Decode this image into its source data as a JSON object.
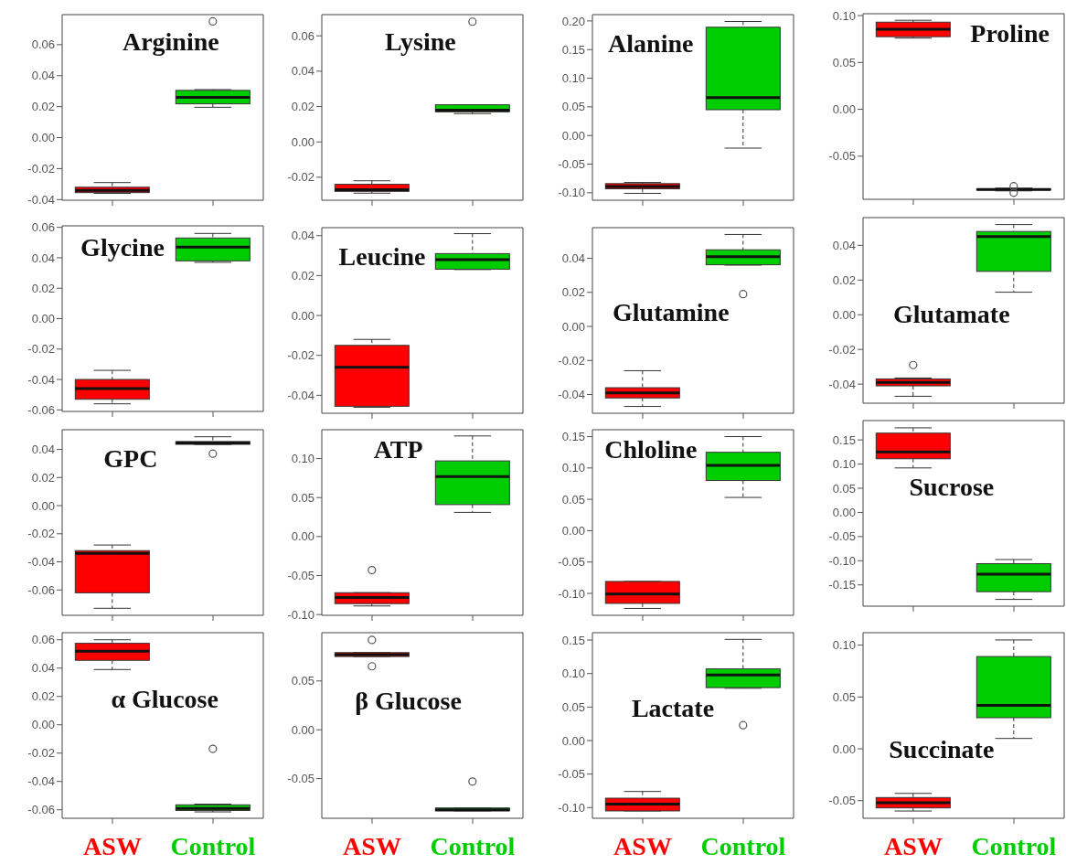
{
  "chart_data": [
    {
      "type": "box",
      "title": "Arginine",
      "categories": [
        null,
        null
      ],
      "colors": [
        "#ff0000",
        "#00cd00"
      ],
      "tick_labels": "y",
      "ylim": [
        -0.0404,
        0.0794
      ],
      "yticks": [
        -0.04,
        -0.02,
        {
          "value": 0,
          "label": "0.00"
        },
        0.02,
        0.04,
        0.06
      ],
      "boxes": [
        {
          "low": -0.036,
          "q1": -0.0355,
          "median": -0.034,
          "q3": -0.032,
          "high": -0.029
        },
        {
          "low": 0.0196,
          "q1": 0.0218,
          "median": 0.026,
          "q3": 0.0305,
          "high": 0.031,
          "outliers": [
            0.075
          ]
        }
      ]
    },
    {
      "type": "box",
      "title": "Lysine",
      "categories": [
        null,
        null
      ],
      "colors": [
        "#ff0000",
        "#00cd00"
      ],
      "tick_labels": "y",
      "ylim": [
        -0.033,
        0.072
      ],
      "yticks": [
        -0.02,
        {
          "value": 0,
          "label": "0.00"
        },
        0.02,
        0.04,
        0.06
      ],
      "boxes": [
        {
          "low": -0.029,
          "q1": -0.028,
          "median": -0.027,
          "q3": -0.024,
          "high": -0.022
        },
        {
          "low": 0.016,
          "q1": 0.017,
          "median": 0.018,
          "q3": 0.021,
          "high": 0.021,
          "outliers": [
            0.068
          ]
        }
      ]
    },
    {
      "type": "box",
      "title": "Alanine",
      "categories": [
        null,
        null
      ],
      "colors": [
        "#ff0000",
        "#00cd00"
      ],
      "tick_labels": "y",
      "ylim": [
        -0.113,
        0.211
      ],
      "yticks": [
        {
          "value": -0.1,
          "label": "-0.10"
        },
        -0.05,
        {
          "value": 0,
          "label": "0.00"
        },
        0.05,
        {
          "value": 0.1,
          "label": "0.10"
        },
        0.15,
        {
          "value": 0.2,
          "label": "0.20"
        }
      ],
      "boxes": [
        {
          "low": -0.101,
          "q1": -0.093,
          "median": -0.089,
          "q3": -0.084,
          "high": -0.082
        },
        {
          "low": -0.022,
          "q1": 0.045,
          "median": 0.066,
          "q3": 0.189,
          "high": 0.199
        }
      ]
    },
    {
      "type": "box",
      "title": "Proline",
      "categories": [
        null,
        null
      ],
      "colors": [
        "#ff0000",
        "#00cd00"
      ],
      "tick_labels": "y",
      "ylim": [
        -0.096,
        0.102
      ],
      "yticks": [
        -0.05,
        {
          "value": 0,
          "label": "0.00"
        },
        0.05,
        {
          "value": 0.1,
          "label": "0.10"
        }
      ],
      "boxes": [
        {
          "low": 0.076,
          "q1": 0.0775,
          "median": 0.0855,
          "q3": 0.093,
          "high": 0.095
        },
        {
          "low": -0.087,
          "q1": -0.086,
          "median": -0.0855,
          "q3": -0.085,
          "high": -0.084,
          "outliers": [
            -0.082,
            -0.089
          ]
        }
      ]
    },
    {
      "type": "box",
      "title": "Glycine",
      "categories": [
        null,
        null
      ],
      "colors": [
        "#ff0000",
        "#00cd00"
      ],
      "tick_labels": "y",
      "ylim": [
        -0.061,
        0.061
      ],
      "yticks": [
        -0.06,
        -0.04,
        -0.02,
        {
          "value": 0,
          "label": "0.00"
        },
        0.02,
        0.04,
        0.06
      ],
      "boxes": [
        {
          "low": -0.056,
          "q1": -0.053,
          "median": -0.046,
          "q3": -0.04,
          "high": -0.034
        },
        {
          "low": 0.037,
          "q1": 0.038,
          "median": 0.047,
          "q3": 0.053,
          "high": 0.056
        }
      ]
    },
    {
      "type": "box",
      "title": "Leucine",
      "categories": [
        null,
        null
      ],
      "colors": [
        "#ff0000",
        "#00cd00"
      ],
      "tick_labels": "y",
      "ylim": [
        -0.049,
        0.044
      ],
      "yticks": [
        -0.04,
        -0.02,
        {
          "value": 0,
          "label": "0.00"
        },
        0.02,
        0.04
      ],
      "boxes": [
        {
          "low": -0.046,
          "q1": -0.0455,
          "median": -0.026,
          "q3": -0.015,
          "high": -0.012
        },
        {
          "low": 0.023,
          "q1": 0.0232,
          "median": 0.028,
          "q3": 0.031,
          "high": 0.041
        }
      ]
    },
    {
      "type": "box",
      "title": "Glutamine",
      "categories": [
        null,
        null
      ],
      "colors": [
        "#ff0000",
        "#00cd00"
      ],
      "tick_labels": "y",
      "ylim": [
        -0.051,
        0.058
      ],
      "yticks": [
        -0.04,
        -0.02,
        {
          "value": 0,
          "label": "0.00"
        },
        0.02,
        0.04
      ],
      "boxes": [
        {
          "low": -0.047,
          "q1": -0.042,
          "median": -0.039,
          "q3": -0.036,
          "high": -0.026
        },
        {
          "low": 0.036,
          "q1": 0.0362,
          "median": 0.041,
          "q3": 0.045,
          "high": 0.054,
          "outliers": [
            0.019
          ]
        }
      ]
    },
    {
      "type": "box",
      "title": "Glutamate",
      "categories": [
        null,
        null
      ],
      "colors": [
        "#ff0000",
        "#00cd00"
      ],
      "tick_labels": "y",
      "ylim": [
        -0.051,
        0.056
      ],
      "yticks": [
        -0.04,
        -0.02,
        {
          "value": 0,
          "label": "0.00"
        },
        0.02,
        0.04
      ],
      "boxes": [
        {
          "low": -0.047,
          "q1": -0.041,
          "median": -0.039,
          "q3": -0.037,
          "high": -0.0365,
          "outliers": [
            -0.029
          ]
        },
        {
          "low": 0.013,
          "q1": 0.025,
          "median": 0.045,
          "q3": 0.048,
          "high": 0.052
        }
      ]
    },
    {
      "type": "box",
      "title": "GPC",
      "categories": [
        null,
        null
      ],
      "colors": [
        "#ff0000",
        "#00cd00"
      ],
      "tick_labels": "y",
      "ylim": [
        -0.078,
        0.054
      ],
      "yticks": [
        -0.06,
        -0.04,
        -0.02,
        {
          "value": 0,
          "label": "0.00"
        },
        0.02,
        0.04
      ],
      "boxes": [
        {
          "low": -0.073,
          "q1": -0.062,
          "median": -0.034,
          "q3": -0.032,
          "high": -0.028
        },
        {
          "low": 0.0435,
          "q1": 0.0436,
          "median": 0.0446,
          "q3": 0.0456,
          "high": 0.049,
          "outliers": [
            0.037
          ]
        }
      ]
    },
    {
      "type": "box",
      "title": "ATP",
      "categories": [
        null,
        null
      ],
      "colors": [
        "#ff0000",
        "#00cd00"
      ],
      "tick_labels": "y",
      "ylim": [
        -0.101,
        0.137
      ],
      "yticks": [
        {
          "value": -0.1,
          "label": "-0.10"
        },
        -0.05,
        {
          "value": 0,
          "label": "0.00"
        },
        0.05,
        {
          "value": 0.1,
          "label": "0.10"
        }
      ],
      "boxes": [
        {
          "low": -0.089,
          "q1": -0.086,
          "median": -0.078,
          "q3": -0.072,
          "high": -0.072,
          "outliers": [
            -0.043
          ]
        },
        {
          "low": 0.031,
          "q1": 0.041,
          "median": 0.077,
          "q3": 0.097,
          "high": 0.129
        }
      ]
    },
    {
      "type": "box",
      "title": "Chloline",
      "categories": [
        null,
        null
      ],
      "colors": [
        "#ff0000",
        "#00cd00"
      ],
      "tick_labels": "y",
      "ylim": [
        -0.135,
        0.161
      ],
      "yticks": [
        {
          "value": -0.1,
          "label": "-0.10"
        },
        -0.05,
        {
          "value": 0,
          "label": "0.00"
        },
        0.05,
        {
          "value": 0.1,
          "label": "0.10"
        },
        0.15
      ],
      "boxes": [
        {
          "low": -0.124,
          "q1": -0.116,
          "median": -0.101,
          "q3": -0.081,
          "high": -0.081
        },
        {
          "low": 0.053,
          "q1": 0.08,
          "median": 0.104,
          "q3": 0.125,
          "high": 0.15
        }
      ]
    },
    {
      "type": "box",
      "title": "Sucrose",
      "categories": [
        null,
        null
      ],
      "colors": [
        "#ff0000",
        "#00cd00"
      ],
      "tick_labels": "y",
      "ylim": [
        -0.194,
        0.19
      ],
      "yticks": [
        -0.15,
        {
          "value": -0.1,
          "label": "-0.10"
        },
        -0.05,
        {
          "value": 0,
          "label": "0.00"
        },
        0.05,
        {
          "value": 0.1,
          "label": "0.10"
        },
        0.15
      ],
      "boxes": [
        {
          "low": 0.092,
          "q1": 0.111,
          "median": 0.125,
          "q3": 0.164,
          "high": 0.175
        },
        {
          "low": -0.18,
          "q1": -0.164,
          "median": -0.128,
          "q3": -0.106,
          "high": -0.0975
        }
      ]
    },
    {
      "type": "box",
      "title": "α Glucose",
      "categories": [
        "ASW",
        "Control"
      ],
      "colors": [
        "#ff0000",
        "#00cd00"
      ],
      "ylim": [
        -0.066,
        0.065
      ],
      "yticks": [
        -0.06,
        -0.04,
        -0.02,
        {
          "value": 0,
          "label": "0.00"
        },
        0.02,
        0.04,
        0.06
      ],
      "boxes": [
        {
          "low": 0.039,
          "q1": 0.0455,
          "median": 0.052,
          "q3": 0.0575,
          "high": 0.06
        },
        {
          "low": -0.0615,
          "q1": -0.0605,
          "median": -0.059,
          "q3": -0.0565,
          "high": -0.056,
          "outliers": [
            -0.017
          ]
        }
      ]
    },
    {
      "type": "box",
      "title": "β Glucose",
      "categories": [
        "ASW",
        "Control"
      ],
      "colors": [
        "#ff0000",
        "#00cd00"
      ],
      "ylim": [
        -0.0906,
        0.0994
      ],
      "yticks": [
        -0.05,
        {
          "value": 0,
          "label": "0.00"
        },
        0.05
      ],
      "boxes": [
        {
          "low": 0.075,
          "q1": 0.075,
          "median": 0.077,
          "q3": 0.079,
          "high": 0.079,
          "outliers": [
            0.092,
            0.065
          ]
        },
        {
          "low": -0.083,
          "q1": -0.083,
          "median": -0.082,
          "q3": -0.08,
          "high": -0.08,
          "outliers": [
            -0.053
          ]
        }
      ]
    },
    {
      "type": "box",
      "title": "Lactate",
      "categories": [
        "ASW",
        "Control"
      ],
      "colors": [
        "#ff0000",
        "#00cd00"
      ],
      "ylim": [
        -0.116,
        0.161
      ],
      "yticks": [
        {
          "value": -0.1,
          "label": "-0.10"
        },
        -0.05,
        {
          "value": 0,
          "label": "0.00"
        },
        0.05,
        {
          "value": 0.1,
          "label": "0.10"
        },
        0.15
      ],
      "boxes": [
        {
          "low": -0.105,
          "q1": -0.105,
          "median": -0.095,
          "q3": -0.086,
          "high": -0.076
        },
        {
          "low": 0.078,
          "q1": 0.079,
          "median": 0.098,
          "q3": 0.107,
          "high": 0.151,
          "outliers": [
            0.023
          ]
        }
      ]
    },
    {
      "type": "box",
      "title": "Succinate",
      "categories": [
        "ASW",
        "Control"
      ],
      "colors": [
        "#ff0000",
        "#00cd00"
      ],
      "ylim": [
        -0.067,
        0.112
      ],
      "yticks": [
        -0.05,
        {
          "value": 0,
          "label": "0.00"
        },
        0.05,
        {
          "value": 0.1,
          "label": "0.10"
        }
      ],
      "boxes": [
        {
          "low": -0.06,
          "q1": -0.057,
          "median": -0.052,
          "q3": -0.047,
          "high": -0.043
        },
        {
          "low": 0.01,
          "q1": 0.03,
          "median": 0.042,
          "q3": 0.089,
          "high": 0.105
        }
      ]
    }
  ]
}
